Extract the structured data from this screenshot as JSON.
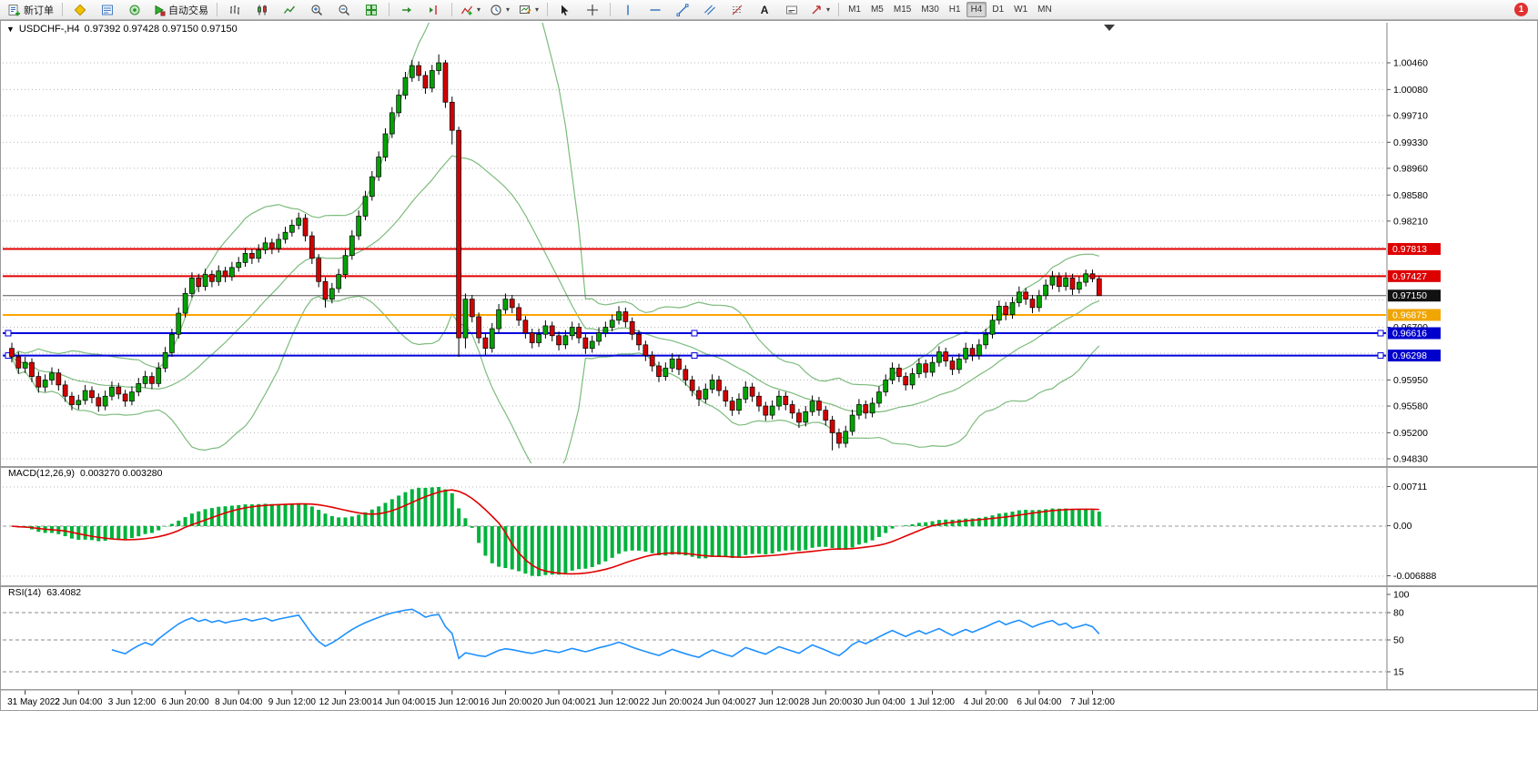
{
  "toolbar": {
    "new_order": "新订单",
    "auto_trading": "自动交易",
    "text_tool_glyph": "A",
    "dropdown_glyph": "▾",
    "timeframes": [
      "M1",
      "M5",
      "M15",
      "M30",
      "H1",
      "H4",
      "D1",
      "W1",
      "MN"
    ],
    "active_timeframe": "H4",
    "notification_count": "1"
  },
  "window": {
    "dropdown_glyph": "▼",
    "title": "USDCHF-,H4",
    "quotes": "0.97392 0.97428 0.97150 0.97150"
  },
  "chart_data": {
    "type": "candlestick",
    "symbol": "USDCHF-",
    "period": "H4",
    "up_color": "#00a400",
    "down_color": "#d40000",
    "wick_color": "#000000",
    "y_axis": {
      "top_price": 1.0046,
      "bottom_price": 0.9483
    },
    "grid_values": [
      1.0046,
      1.0008,
      0.9971,
      0.9933,
      0.9896,
      0.9858,
      0.9821,
      0.9784,
      0.9746,
      0.9709,
      0.967,
      0.9633,
      0.9595,
      0.9558,
      0.952,
      0.9483
    ],
    "price_labels": {
      "values": [
        1.0046,
        1.0008,
        0.9971,
        0.9933,
        0.9896,
        0.9858,
        0.9821,
        0.967,
        0.9595,
        0.9558,
        0.952,
        0.9483
      ],
      "texts": [
        "1.00460",
        "1.00080",
        "0.99710",
        "0.99330",
        "0.98960",
        "0.98580",
        "0.98210",
        "0.96700",
        "0.95950",
        "0.95580",
        "0.95200",
        "0.94830"
      ]
    },
    "tags": [
      {
        "price": 0.97813,
        "text": "0.97813",
        "bg": "#dd0000"
      },
      {
        "price": 0.97427,
        "text": "0.97427",
        "bg": "#dd0000"
      },
      {
        "price": 0.9715,
        "text": "0.97150",
        "bg": "#111111"
      },
      {
        "price": 0.96875,
        "text": "0.96875",
        "bg": "#f0a500"
      },
      {
        "price": 0.96616,
        "text": "0.96616",
        "bg": "#0000cc"
      },
      {
        "price": 0.96298,
        "text": "0.96298",
        "bg": "#0000cc"
      }
    ],
    "lines": [
      {
        "price": 0.97813,
        "color": "#e00000",
        "width": 2,
        "handles": false
      },
      {
        "price": 0.97427,
        "color": "#e00000",
        "width": 2,
        "handles": false
      },
      {
        "price": 0.9715,
        "color": "#555555",
        "width": 1,
        "handles": false
      },
      {
        "price": 0.96875,
        "color": "#ffa500",
        "width": 2,
        "handles": false
      },
      {
        "price": 0.96616,
        "color": "#0000dd",
        "width": 2,
        "handles": true
      },
      {
        "price": 0.96298,
        "color": "#0000dd",
        "width": 2,
        "handles": true
      }
    ],
    "bollinger": {
      "period": 20,
      "deviation": 2,
      "color": "#7dbb7d"
    },
    "macd": {
      "label": "MACD(12,26,9)",
      "values_text": "0.003270 0.003280",
      "fast": 12,
      "slow": 26,
      "signal": 9,
      "axis_texts": [
        "0.00711",
        "0.00",
        "-0.006888"
      ],
      "bar_color": "#00b23b",
      "signal_color": "#e00000"
    },
    "rsi": {
      "label": "RSI(14)",
      "value_text": "63.4082",
      "period": 14,
      "levels": [
        80,
        50,
        15
      ],
      "axis_texts": [
        "100",
        "80",
        "50",
        "15"
      ],
      "color": "#1e90ff"
    },
    "x_labels": {
      "indices": [
        2,
        10,
        18,
        26,
        34,
        42,
        50,
        58,
        66,
        74,
        82,
        90,
        98,
        106,
        114,
        122,
        130,
        138,
        146,
        154,
        162
      ],
      "texts": [
        "31 May 2022",
        "2 Jun 04:00",
        "3 Jun 12:00",
        "6 Jun 20:00",
        "8 Jun 04:00",
        "9 Jun 12:00",
        "12 Jun 23:00",
        "14 Jun 04:00",
        "15 Jun 12:00",
        "16 Jun 20:00",
        "20 Jun 04:00",
        "21 Jun 12:00",
        "22 Jun 20:00",
        "24 Jun 04:00",
        "27 Jun 12:00",
        "28 Jun 20:00",
        "30 Jun 04:00",
        "1 Jul 12:00",
        "4 Jul 20:00",
        "6 Jul 04:00",
        "7 Jul 12:00"
      ]
    },
    "candles": [
      [
        0.964,
        0.9648,
        0.962,
        0.9628
      ],
      [
        0.9628,
        0.9635,
        0.9604,
        0.9612
      ],
      [
        0.9612,
        0.9628,
        0.9605,
        0.962
      ],
      [
        0.962,
        0.9626,
        0.9592,
        0.96
      ],
      [
        0.96,
        0.9607,
        0.9577,
        0.9585
      ],
      [
        0.9585,
        0.9603,
        0.9578,
        0.9595
      ],
      [
        0.9595,
        0.9613,
        0.9588,
        0.9605
      ],
      [
        0.9605,
        0.9611,
        0.958,
        0.9588
      ],
      [
        0.9588,
        0.9594,
        0.9564,
        0.9572
      ],
      [
        0.9572,
        0.9578,
        0.9552,
        0.956
      ],
      [
        0.956,
        0.9574,
        0.9553,
        0.9566
      ],
      [
        0.9566,
        0.9588,
        0.956,
        0.958
      ],
      [
        0.958,
        0.9586,
        0.9562,
        0.957
      ],
      [
        0.957,
        0.9576,
        0.955,
        0.9558
      ],
      [
        0.9558,
        0.958,
        0.9552,
        0.9572
      ],
      [
        0.9572,
        0.9593,
        0.9566,
        0.9585
      ],
      [
        0.9585,
        0.9591,
        0.9568,
        0.9575
      ],
      [
        0.9575,
        0.9581,
        0.9557,
        0.9565
      ],
      [
        0.9565,
        0.9586,
        0.9559,
        0.9578
      ],
      [
        0.9578,
        0.9598,
        0.9572,
        0.959
      ],
      [
        0.959,
        0.9608,
        0.9584,
        0.96
      ],
      [
        0.96,
        0.9606,
        0.9582,
        0.959
      ],
      [
        0.959,
        0.962,
        0.9585,
        0.9612
      ],
      [
        0.9612,
        0.9642,
        0.9606,
        0.9634
      ],
      [
        0.9634,
        0.9668,
        0.9628,
        0.966
      ],
      [
        0.966,
        0.9698,
        0.9654,
        0.969
      ],
      [
        0.969,
        0.9726,
        0.9684,
        0.9718
      ],
      [
        0.9718,
        0.9748,
        0.9712,
        0.974
      ],
      [
        0.974,
        0.9746,
        0.972,
        0.9728
      ],
      [
        0.9728,
        0.9753,
        0.9722,
        0.9745
      ],
      [
        0.9745,
        0.9751,
        0.9727,
        0.9735
      ],
      [
        0.9735,
        0.9758,
        0.9729,
        0.975
      ],
      [
        0.975,
        0.9756,
        0.9734,
        0.9742
      ],
      [
        0.9742,
        0.9763,
        0.9736,
        0.9755
      ],
      [
        0.9755,
        0.977,
        0.9749,
        0.9762
      ],
      [
        0.9762,
        0.9783,
        0.9756,
        0.9775
      ],
      [
        0.9775,
        0.9781,
        0.976,
        0.9768
      ],
      [
        0.9768,
        0.9788,
        0.9762,
        0.978
      ],
      [
        0.978,
        0.9798,
        0.9774,
        0.979
      ],
      [
        0.979,
        0.9796,
        0.9774,
        0.9782
      ],
      [
        0.9782,
        0.9803,
        0.9776,
        0.9795
      ],
      [
        0.9795,
        0.9813,
        0.9789,
        0.9805
      ],
      [
        0.9805,
        0.9823,
        0.9799,
        0.9815
      ],
      [
        0.9815,
        0.9833,
        0.9809,
        0.9825
      ],
      [
        0.9825,
        0.9831,
        0.9792,
        0.98
      ],
      [
        0.98,
        0.9806,
        0.976,
        0.9768
      ],
      [
        0.9768,
        0.9774,
        0.9727,
        0.9735
      ],
      [
        0.9735,
        0.9741,
        0.9698,
        0.971
      ],
      [
        0.971,
        0.9733,
        0.9704,
        0.9725
      ],
      [
        0.9725,
        0.9753,
        0.9719,
        0.9745
      ],
      [
        0.9745,
        0.978,
        0.9739,
        0.9772
      ],
      [
        0.9772,
        0.9808,
        0.9766,
        0.98
      ],
      [
        0.98,
        0.9836,
        0.9794,
        0.9828
      ],
      [
        0.9828,
        0.9864,
        0.9822,
        0.9856
      ],
      [
        0.9856,
        0.9892,
        0.985,
        0.9884
      ],
      [
        0.9884,
        0.992,
        0.9878,
        0.9912
      ],
      [
        0.9912,
        0.9953,
        0.9906,
        0.9945
      ],
      [
        0.9945,
        0.9983,
        0.9939,
        0.9975
      ],
      [
        0.9975,
        1.0008,
        0.9969,
        1.0
      ],
      [
        1.0,
        1.0033,
        0.9994,
        1.0025
      ],
      [
        1.0025,
        1.005,
        1.0019,
        1.0042
      ],
      [
        1.0042,
        1.0048,
        1.002,
        1.0028
      ],
      [
        1.0028,
        1.0034,
        1.0002,
        1.001
      ],
      [
        1.001,
        1.0043,
        1.0004,
        1.0035
      ],
      [
        1.0035,
        1.0058,
        1.0029,
        1.0046
      ],
      [
        1.0046,
        1.005,
        0.9982,
        0.999
      ],
      [
        0.999,
        0.9998,
        0.993,
        0.995
      ],
      [
        0.995,
        0.9955,
        0.9628,
        0.9655
      ],
      [
        0.9655,
        0.9718,
        0.964,
        0.971
      ],
      [
        0.971,
        0.9716,
        0.9677,
        0.9685
      ],
      [
        0.9685,
        0.9691,
        0.9647,
        0.9655
      ],
      [
        0.9655,
        0.9661,
        0.963,
        0.964
      ],
      [
        0.964,
        0.9676,
        0.9634,
        0.9668
      ],
      [
        0.9668,
        0.9703,
        0.9662,
        0.9695
      ],
      [
        0.9695,
        0.9718,
        0.9689,
        0.971
      ],
      [
        0.971,
        0.9716,
        0.969,
        0.9698
      ],
      [
        0.9698,
        0.9704,
        0.9672,
        0.968
      ],
      [
        0.968,
        0.9686,
        0.9654,
        0.9662
      ],
      [
        0.9662,
        0.9668,
        0.964,
        0.9648
      ],
      [
        0.9648,
        0.9668,
        0.9642,
        0.966
      ],
      [
        0.966,
        0.968,
        0.9654,
        0.9672
      ],
      [
        0.9672,
        0.9678,
        0.965,
        0.9658
      ],
      [
        0.9658,
        0.9664,
        0.9637,
        0.9645
      ],
      [
        0.9645,
        0.9666,
        0.9639,
        0.9658
      ],
      [
        0.9658,
        0.9678,
        0.9652,
        0.967
      ],
      [
        0.967,
        0.9676,
        0.9647,
        0.9655
      ],
      [
        0.9655,
        0.9661,
        0.9632,
        0.964
      ],
      [
        0.964,
        0.9658,
        0.9634,
        0.965
      ],
      [
        0.965,
        0.967,
        0.9644,
        0.9662
      ],
      [
        0.9662,
        0.9678,
        0.9656,
        0.967
      ],
      [
        0.967,
        0.9688,
        0.9664,
        0.968
      ],
      [
        0.968,
        0.97,
        0.9674,
        0.9692
      ],
      [
        0.9692,
        0.9698,
        0.967,
        0.9678
      ],
      [
        0.9678,
        0.9684,
        0.9652,
        0.966
      ],
      [
        0.966,
        0.9666,
        0.9637,
        0.9645
      ],
      [
        0.9645,
        0.9651,
        0.9622,
        0.963
      ],
      [
        0.963,
        0.9636,
        0.9607,
        0.9615
      ],
      [
        0.9615,
        0.9621,
        0.9592,
        0.96
      ],
      [
        0.96,
        0.962,
        0.9594,
        0.9612
      ],
      [
        0.9612,
        0.9633,
        0.9606,
        0.9625
      ],
      [
        0.9625,
        0.9631,
        0.9602,
        0.961
      ],
      [
        0.961,
        0.9616,
        0.9587,
        0.9595
      ],
      [
        0.9595,
        0.9601,
        0.9572,
        0.958
      ],
      [
        0.958,
        0.9586,
        0.9558,
        0.9568
      ],
      [
        0.9568,
        0.959,
        0.9562,
        0.9582
      ],
      [
        0.9582,
        0.9603,
        0.9576,
        0.9595
      ],
      [
        0.9595,
        0.9601,
        0.9572,
        0.958
      ],
      [
        0.958,
        0.9586,
        0.9557,
        0.9565
      ],
      [
        0.9565,
        0.9571,
        0.9544,
        0.9552
      ],
      [
        0.9552,
        0.9576,
        0.9546,
        0.9568
      ],
      [
        0.9568,
        0.9593,
        0.9562,
        0.9585
      ],
      [
        0.9585,
        0.9591,
        0.9564,
        0.9572
      ],
      [
        0.9572,
        0.9578,
        0.955,
        0.9558
      ],
      [
        0.9558,
        0.9564,
        0.9537,
        0.9545
      ],
      [
        0.9545,
        0.9566,
        0.9539,
        0.9558
      ],
      [
        0.9558,
        0.958,
        0.9552,
        0.9572
      ],
      [
        0.9572,
        0.9578,
        0.9552,
        0.956
      ],
      [
        0.956,
        0.9566,
        0.954,
        0.9548
      ],
      [
        0.9548,
        0.9554,
        0.9527,
        0.9535
      ],
      [
        0.9535,
        0.9558,
        0.9529,
        0.955
      ],
      [
        0.955,
        0.9573,
        0.9544,
        0.9565
      ],
      [
        0.9565,
        0.9571,
        0.9544,
        0.9552
      ],
      [
        0.9552,
        0.9558,
        0.953,
        0.9538
      ],
      [
        0.9538,
        0.9544,
        0.9495,
        0.952
      ],
      [
        0.952,
        0.9526,
        0.9498,
        0.9505
      ],
      [
        0.9505,
        0.953,
        0.9499,
        0.9522
      ],
      [
        0.9522,
        0.9553,
        0.9516,
        0.9545
      ],
      [
        0.9545,
        0.9568,
        0.9539,
        0.956
      ],
      [
        0.956,
        0.9566,
        0.954,
        0.9548
      ],
      [
        0.9548,
        0.957,
        0.9542,
        0.9562
      ],
      [
        0.9562,
        0.9586,
        0.9556,
        0.9578
      ],
      [
        0.9578,
        0.9603,
        0.9572,
        0.9595
      ],
      [
        0.9595,
        0.962,
        0.9589,
        0.9612
      ],
      [
        0.9612,
        0.9618,
        0.9592,
        0.96
      ],
      [
        0.96,
        0.9606,
        0.958,
        0.9588
      ],
      [
        0.9588,
        0.9612,
        0.9582,
        0.9604
      ],
      [
        0.9604,
        0.9626,
        0.9598,
        0.9618
      ],
      [
        0.9618,
        0.9624,
        0.9598,
        0.9606
      ],
      [
        0.9606,
        0.9628,
        0.96,
        0.962
      ],
      [
        0.962,
        0.9643,
        0.9614,
        0.9635
      ],
      [
        0.9635,
        0.9641,
        0.9614,
        0.9622
      ],
      [
        0.9622,
        0.9628,
        0.9602,
        0.961
      ],
      [
        0.961,
        0.9633,
        0.9604,
        0.9625
      ],
      [
        0.9625,
        0.9648,
        0.9619,
        0.964
      ],
      [
        0.964,
        0.9646,
        0.9622,
        0.963
      ],
      [
        0.963,
        0.9653,
        0.9624,
        0.9645
      ],
      [
        0.9645,
        0.9668,
        0.9639,
        0.966
      ],
      [
        0.966,
        0.9688,
        0.9654,
        0.968
      ],
      [
        0.968,
        0.9708,
        0.9674,
        0.97
      ],
      [
        0.97,
        0.9706,
        0.968,
        0.9688
      ],
      [
        0.9688,
        0.9713,
        0.9682,
        0.9705
      ],
      [
        0.9705,
        0.9728,
        0.9699,
        0.972
      ],
      [
        0.972,
        0.9726,
        0.9702,
        0.971
      ],
      [
        0.971,
        0.9716,
        0.969,
        0.9698
      ],
      [
        0.9698,
        0.9723,
        0.9692,
        0.9715
      ],
      [
        0.9715,
        0.9738,
        0.9709,
        0.973
      ],
      [
        0.973,
        0.975,
        0.9724,
        0.9742
      ],
      [
        0.9742,
        0.9748,
        0.972,
        0.9728
      ],
      [
        0.9728,
        0.9748,
        0.9722,
        0.974
      ],
      [
        0.974,
        0.9746,
        0.9716,
        0.9724
      ],
      [
        0.9724,
        0.9742,
        0.9718,
        0.9734
      ],
      [
        0.9734,
        0.9752,
        0.9728,
        0.9746
      ],
      [
        0.9746,
        0.9752,
        0.9734,
        0.9739
      ],
      [
        0.9739,
        0.9743,
        0.9715,
        0.9715
      ]
    ]
  }
}
